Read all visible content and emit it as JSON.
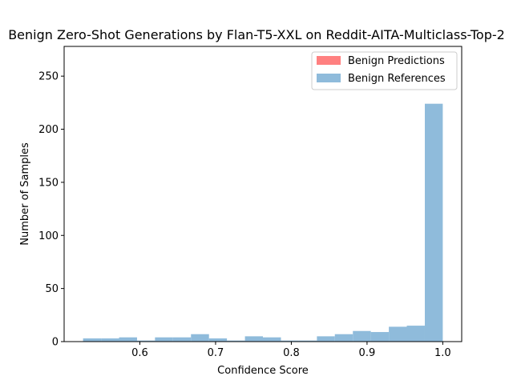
{
  "chart_data": {
    "type": "bar",
    "title": "Benign Zero-Shot Generations by Flan-T5-XXL on Reddit-AITA-Multiclass-Top-2",
    "xlabel": "Confidence Score",
    "ylabel": "Number of Samples",
    "xlim": [
      0.5,
      1.025
    ],
    "ylim": [
      0,
      278
    ],
    "xticks": [
      0.6,
      0.7,
      0.8,
      0.9,
      1.0
    ],
    "xtick_labels": [
      "0.6",
      "0.7",
      "0.8",
      "0.9",
      "1.0"
    ],
    "yticks": [
      0,
      50,
      100,
      150,
      200,
      250
    ],
    "ytick_labels": [
      "0",
      "50",
      "100",
      "150",
      "200",
      "250"
    ],
    "grid": false,
    "legend_position": "top-right",
    "bin_edges": [
      0.525,
      0.5488,
      0.5725,
      0.5963,
      0.62,
      0.6438,
      0.6675,
      0.6913,
      0.715,
      0.7388,
      0.7625,
      0.7863,
      0.81,
      0.8338,
      0.8575,
      0.8813,
      0.905,
      0.9288,
      0.9525,
      0.9763,
      1.0
    ],
    "series": [
      {
        "name": "Benign Predictions",
        "color": "#ff8080",
        "values": [
          0,
          0,
          0,
          0,
          0,
          0,
          0,
          0,
          0,
          0,
          0,
          0,
          0,
          0,
          0,
          0,
          0,
          0,
          0,
          0
        ]
      },
      {
        "name": "Benign References",
        "color": "#8fbbdb",
        "values": [
          3,
          3,
          4,
          1,
          4,
          4,
          7,
          3,
          1,
          5,
          4,
          1,
          1,
          5,
          7,
          10,
          9,
          14,
          15,
          224
        ]
      }
    ]
  }
}
